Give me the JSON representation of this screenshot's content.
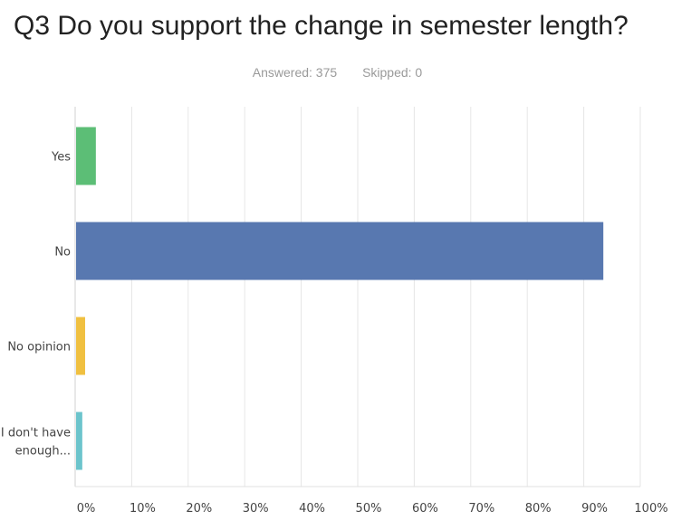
{
  "header": {
    "title": "Q3 Do you support the change in semester length?",
    "answered": "Answered: 375",
    "skipped": "Skipped: 0"
  },
  "chart_data": {
    "type": "bar",
    "orientation": "horizontal",
    "categories": [
      [
        "Yes"
      ],
      [
        "No"
      ],
      [
        "No opinion"
      ],
      [
        "I don't have",
        "enough..."
      ]
    ],
    "values": [
      3.5,
      93.3,
      1.6,
      1.1
    ],
    "colors": [
      "#5cbe76",
      "#5878b0",
      "#f0c040",
      "#6cc4cc"
    ],
    "xlim": [
      0,
      100
    ],
    "xticks": [
      "0%",
      "10%",
      "20%",
      "30%",
      "40%",
      "50%",
      "60%",
      "70%",
      "80%",
      "90%",
      "100%"
    ],
    "grid": true
  }
}
